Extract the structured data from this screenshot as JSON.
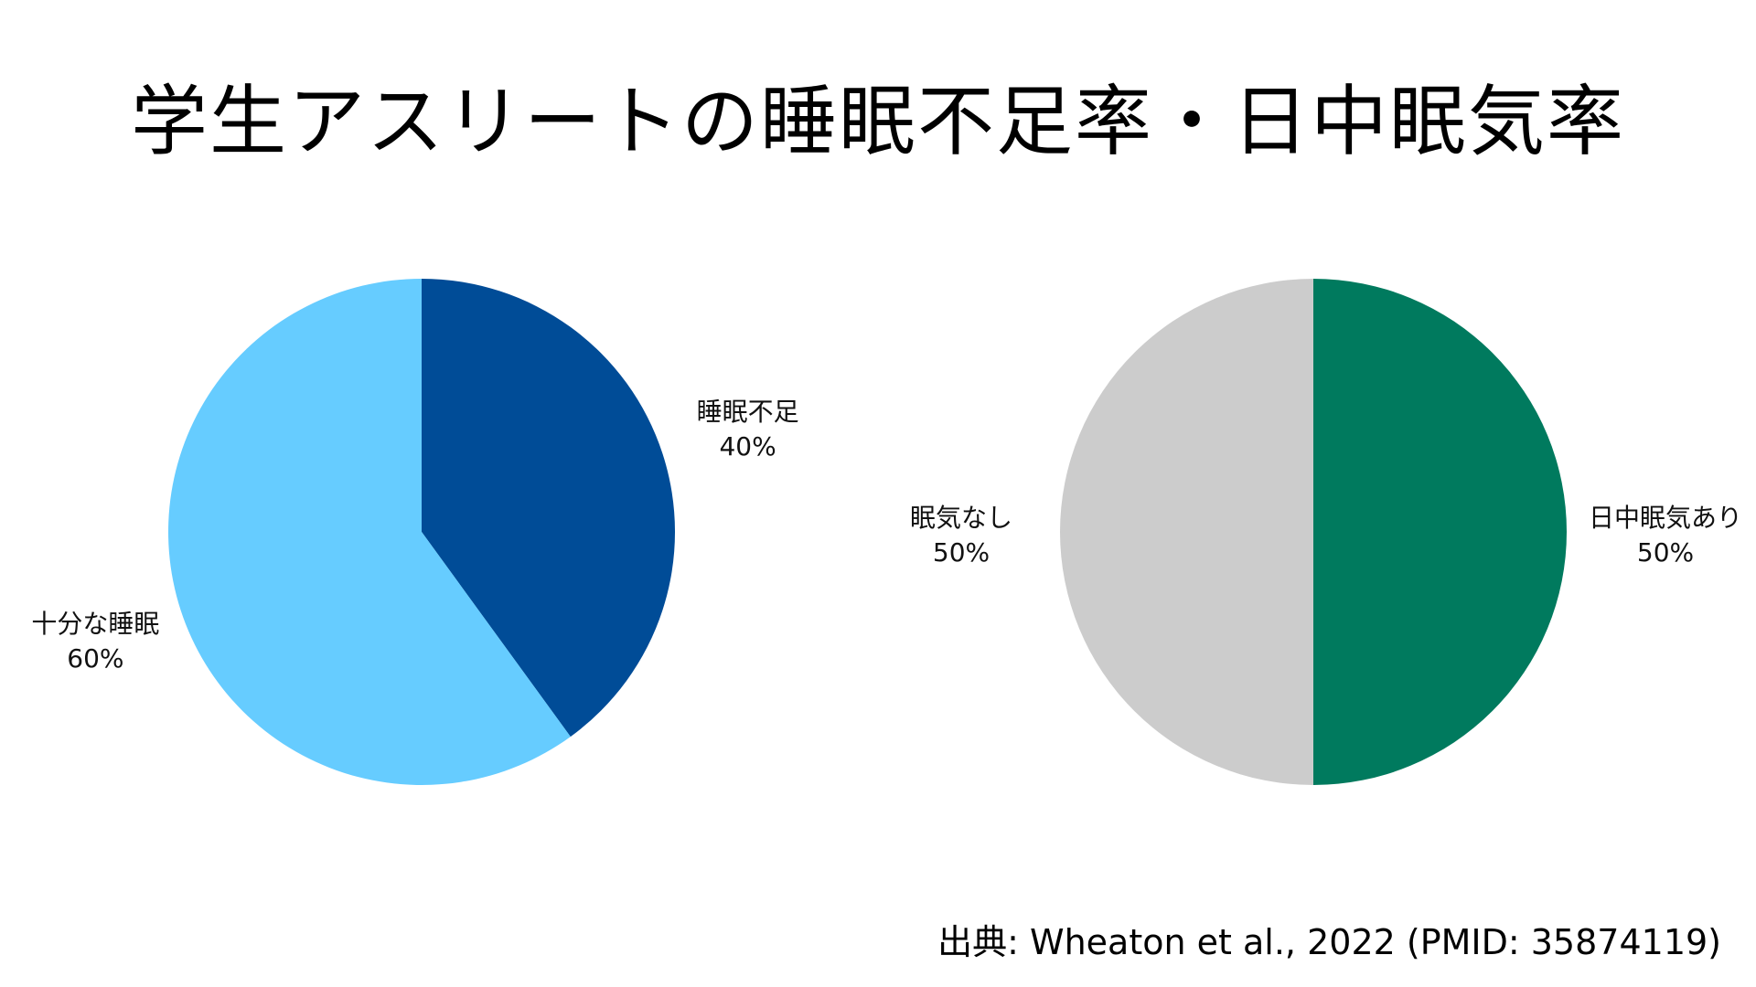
{
  "title": "学生アスリートの睡眠不足率・日中眠気率",
  "source": "出典: Wheaton et al., 2022 (PMID: 35874119)",
  "chart_data": [
    {
      "type": "pie",
      "title": "",
      "slices": [
        {
          "label": "睡眠不足",
          "value": 40,
          "value_label": "40%",
          "color": "#004C97"
        },
        {
          "label": "十分な睡眠",
          "value": 60,
          "value_label": "60%",
          "color": "#66CCFF"
        }
      ]
    },
    {
      "type": "pie",
      "title": "",
      "slices": [
        {
          "label": "日中眠気あり",
          "value": 50,
          "value_label": "50%",
          "color": "#007A5E"
        },
        {
          "label": "眠気なし",
          "value": 50,
          "value_label": "50%",
          "color": "#CCCCCC"
        }
      ]
    }
  ]
}
